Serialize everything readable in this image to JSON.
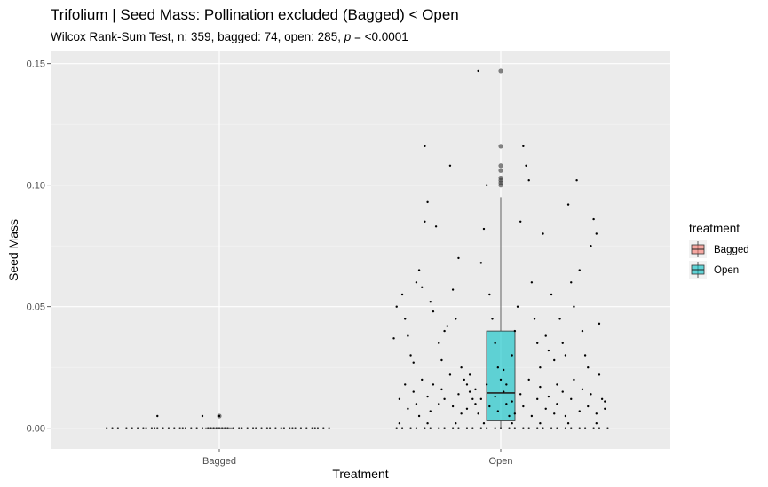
{
  "chart_data": {
    "type": "boxplot",
    "title": "Trifolium | Seed Mass: Pollination excluded (Bagged) < Open",
    "subtitle_prefix": "Wilcox Rank-Sum Test, n: 359, bagged: 74, open: 285, ",
    "subtitle_p_symbol": "p",
    "subtitle_suffix": " = <0.0001",
    "xlabel": "Treatment",
    "ylabel": "Seed Mass",
    "categories": [
      "Bagged",
      "Open"
    ],
    "ylim": [
      -0.0085,
      0.155
    ],
    "yticks": [
      0.0,
      0.05,
      0.1,
      0.15
    ],
    "ytick_labels": [
      "0.00",
      "0.05",
      "0.10",
      "0.15"
    ],
    "grid": true,
    "legend": {
      "title": "treatment",
      "position": "right",
      "entries": [
        {
          "label": "Bagged",
          "color": "#F8766D"
        },
        {
          "label": "Open",
          "color": "#00BFC4"
        }
      ]
    },
    "series": [
      {
        "name": "Bagged",
        "color": "#F8766D",
        "box": {
          "q1": 0.0,
          "median": 0.0,
          "q3": 0.0,
          "whisker_low": 0.0,
          "whisker_high": 0.0
        },
        "outliers": [
          0.005
        ]
      },
      {
        "name": "Open",
        "color": "#00BFC4",
        "box": {
          "q1": 0.003,
          "median": 0.0145,
          "q3": 0.04,
          "whisker_low": 0.0,
          "whisker_high": 0.095
        },
        "outliers": [
          0.147,
          0.116,
          0.108,
          0.106,
          0.103,
          0.102,
          0.101,
          0.1
        ]
      }
    ],
    "jitter_points": {
      "Bagged": [
        [
          -0.4,
          0.0
        ],
        [
          -0.38,
          0.0
        ],
        [
          -0.36,
          0.0
        ],
        [
          -0.31,
          0.0
        ],
        [
          -0.29,
          0.0
        ],
        [
          -0.27,
          0.0
        ],
        [
          -0.26,
          0.0
        ],
        [
          -0.24,
          0.0
        ],
        [
          -0.23,
          0.0
        ],
        [
          -0.22,
          0.0
        ],
        [
          -0.2,
          0.0
        ],
        [
          -0.18,
          0.0
        ],
        [
          -0.16,
          0.0
        ],
        [
          -0.14,
          0.0
        ],
        [
          -0.12,
          0.0
        ],
        [
          -0.1,
          0.0
        ],
        [
          -0.08,
          0.0
        ],
        [
          -0.06,
          0.0
        ],
        [
          -0.04,
          0.0
        ],
        [
          -0.03,
          0.0
        ],
        [
          -0.02,
          0.0
        ],
        [
          -0.01,
          0.0
        ],
        [
          0.0,
          0.0
        ],
        [
          0.01,
          0.0
        ],
        [
          0.02,
          0.0
        ],
        [
          0.03,
          0.0
        ],
        [
          0.05,
          0.0
        ],
        [
          0.07,
          0.0
        ],
        [
          0.1,
          0.0
        ],
        [
          0.12,
          0.0
        ],
        [
          0.13,
          0.0
        ],
        [
          0.15,
          0.0
        ],
        [
          0.17,
          0.0
        ],
        [
          0.18,
          0.0
        ],
        [
          0.2,
          0.0
        ],
        [
          0.22,
          0.0
        ],
        [
          0.23,
          0.0
        ],
        [
          0.25,
          0.0
        ],
        [
          0.27,
          0.0
        ],
        [
          0.29,
          0.0
        ],
        [
          0.31,
          0.0
        ],
        [
          0.33,
          0.0
        ],
        [
          0.35,
          0.0
        ],
        [
          0.37,
          0.0
        ],
        [
          0.39,
          0.0
        ],
        [
          -0.22,
          0.005
        ],
        [
          -0.06,
          0.005
        ],
        [
          0.0,
          0.005
        ],
        [
          -0.33,
          0.0
        ],
        [
          -0.13,
          0.0
        ],
        [
          0.08,
          0.0
        ],
        [
          0.26,
          0.0
        ],
        [
          0.34,
          0.0
        ]
      ],
      "Open": [
        [
          -0.38,
          0.037
        ],
        [
          -0.37,
          0.05
        ],
        [
          -0.35,
          0.055
        ],
        [
          -0.34,
          0.045
        ],
        [
          -0.33,
          0.038
        ],
        [
          -0.32,
          0.03
        ],
        [
          -0.31,
          0.027
        ],
        [
          -0.3,
          0.06
        ],
        [
          -0.29,
          0.065
        ],
        [
          -0.28,
          0.058
        ],
        [
          -0.27,
          0.085
        ],
        [
          -0.27,
          0.116
        ],
        [
          -0.26,
          0.093
        ],
        [
          -0.25,
          0.052
        ],
        [
          -0.24,
          0.048
        ],
        [
          -0.23,
          0.083
        ],
        [
          -0.22,
          0.035
        ],
        [
          -0.21,
          0.028
        ],
        [
          -0.2,
          0.04
        ],
        [
          -0.19,
          0.042
        ],
        [
          -0.18,
          0.108
        ],
        [
          -0.17,
          0.057
        ],
        [
          -0.16,
          0.045
        ],
        [
          -0.15,
          0.07
        ],
        [
          -0.14,
          0.025
        ],
        [
          -0.13,
          0.02
        ],
        [
          -0.12,
          0.018
        ],
        [
          -0.11,
          0.015
        ],
        [
          -0.1,
          0.012
        ],
        [
          -0.09,
          0.01
        ],
        [
          -0.08,
          0.147
        ],
        [
          -0.07,
          0.068
        ],
        [
          -0.06,
          0.082
        ],
        [
          -0.05,
          0.1
        ],
        [
          -0.04,
          0.055
        ],
        [
          -0.03,
          0.045
        ],
        [
          -0.02,
          0.035
        ],
        [
          -0.01,
          0.025
        ],
        [
          0.0,
          0.02
        ],
        [
          0.01,
          0.015
        ],
        [
          0.02,
          0.01
        ],
        [
          0.03,
          0.005
        ],
        [
          0.04,
          0.03
        ],
        [
          0.05,
          0.04
        ],
        [
          0.06,
          0.05
        ],
        [
          0.07,
          0.085
        ],
        [
          0.08,
          0.116
        ],
        [
          0.09,
          0.108
        ],
        [
          0.1,
          0.102
        ],
        [
          0.11,
          0.06
        ],
        [
          0.12,
          0.045
        ],
        [
          0.13,
          0.035
        ],
        [
          0.14,
          0.025
        ],
        [
          0.15,
          0.08
        ],
        [
          0.16,
          0.038
        ],
        [
          0.17,
          0.032
        ],
        [
          0.18,
          0.055
        ],
        [
          0.19,
          0.028
        ],
        [
          0.2,
          0.018
        ],
        [
          0.21,
          0.045
        ],
        [
          0.22,
          0.035
        ],
        [
          0.23,
          0.03
        ],
        [
          0.24,
          0.092
        ],
        [
          0.25,
          0.06
        ],
        [
          0.26,
          0.05
        ],
        [
          0.27,
          0.102
        ],
        [
          0.28,
          0.065
        ],
        [
          0.29,
          0.04
        ],
        [
          0.3,
          0.03
        ],
        [
          0.31,
          0.025
        ],
        [
          0.32,
          0.075
        ],
        [
          0.33,
          0.086
        ],
        [
          0.34,
          0.08
        ],
        [
          0.35,
          0.043
        ],
        [
          0.36,
          0.012
        ],
        [
          0.37,
          0.008
        ],
        [
          -0.36,
          0.012
        ],
        [
          -0.34,
          0.018
        ],
        [
          -0.33,
          0.008
        ],
        [
          -0.31,
          0.015
        ],
        [
          -0.3,
          0.01
        ],
        [
          -0.29,
          0.005
        ],
        [
          -0.28,
          0.02
        ],
        [
          -0.26,
          0.013
        ],
        [
          -0.25,
          0.007
        ],
        [
          -0.24,
          0.018
        ],
        [
          -0.22,
          0.01
        ],
        [
          -0.21,
          0.016
        ],
        [
          -0.2,
          0.012
        ],
        [
          -0.18,
          0.022
        ],
        [
          -0.17,
          0.009
        ],
        [
          -0.15,
          0.014
        ],
        [
          -0.14,
          0.006
        ],
        [
          -0.12,
          0.008
        ],
        [
          -0.11,
          0.022
        ],
        [
          -0.09,
          0.016
        ],
        [
          -0.08,
          0.006
        ],
        [
          -0.07,
          0.012
        ],
        [
          -0.05,
          0.018
        ],
        [
          -0.04,
          0.009
        ],
        [
          -0.02,
          0.013
        ],
        [
          -0.01,
          0.007
        ],
        [
          0.01,
          0.024
        ],
        [
          0.02,
          0.018
        ],
        [
          0.04,
          0.011
        ],
        [
          0.05,
          0.006
        ],
        [
          0.07,
          0.014
        ],
        [
          0.08,
          0.009
        ],
        [
          0.1,
          0.02
        ],
        [
          0.11,
          0.005
        ],
        [
          0.13,
          0.012
        ],
        [
          0.14,
          0.017
        ],
        [
          0.16,
          0.008
        ],
        [
          0.17,
          0.013
        ],
        [
          0.19,
          0.006
        ],
        [
          0.2,
          0.01
        ],
        [
          0.22,
          0.015
        ],
        [
          0.23,
          0.005
        ],
        [
          0.25,
          0.012
        ],
        [
          0.26,
          0.02
        ],
        [
          0.28,
          0.007
        ],
        [
          0.29,
          0.016
        ],
        [
          0.31,
          0.009
        ],
        [
          0.32,
          0.014
        ],
        [
          0.34,
          0.006
        ],
        [
          0.35,
          0.022
        ],
        [
          0.37,
          0.011
        ],
        [
          -0.37,
          0.0
        ],
        [
          -0.35,
          0.0
        ],
        [
          -0.32,
          0.0
        ],
        [
          -0.3,
          0.0
        ],
        [
          -0.27,
          0.0
        ],
        [
          -0.25,
          0.0
        ],
        [
          -0.22,
          0.0
        ],
        [
          -0.2,
          0.0
        ],
        [
          -0.17,
          0.0
        ],
        [
          -0.15,
          0.0
        ],
        [
          -0.12,
          0.0
        ],
        [
          -0.1,
          0.0
        ],
        [
          -0.07,
          0.0
        ],
        [
          -0.05,
          0.0
        ],
        [
          -0.02,
          0.0
        ],
        [
          0.0,
          0.0
        ],
        [
          0.03,
          0.0
        ],
        [
          0.05,
          0.0
        ],
        [
          0.08,
          0.0
        ],
        [
          0.1,
          0.0
        ],
        [
          0.13,
          0.0
        ],
        [
          0.15,
          0.0
        ],
        [
          0.18,
          0.0
        ],
        [
          0.2,
          0.0
        ],
        [
          0.23,
          0.0
        ],
        [
          0.25,
          0.0
        ],
        [
          0.28,
          0.0
        ],
        [
          0.3,
          0.0
        ],
        [
          0.33,
          0.0
        ],
        [
          0.35,
          0.0
        ],
        [
          0.38,
          0.0
        ],
        [
          -0.36,
          0.002
        ],
        [
          -0.26,
          0.002
        ],
        [
          -0.16,
          0.002
        ],
        [
          -0.06,
          0.002
        ],
        [
          0.04,
          0.002
        ],
        [
          0.14,
          0.002
        ],
        [
          0.24,
          0.002
        ],
        [
          0.34,
          0.002
        ]
      ]
    }
  }
}
